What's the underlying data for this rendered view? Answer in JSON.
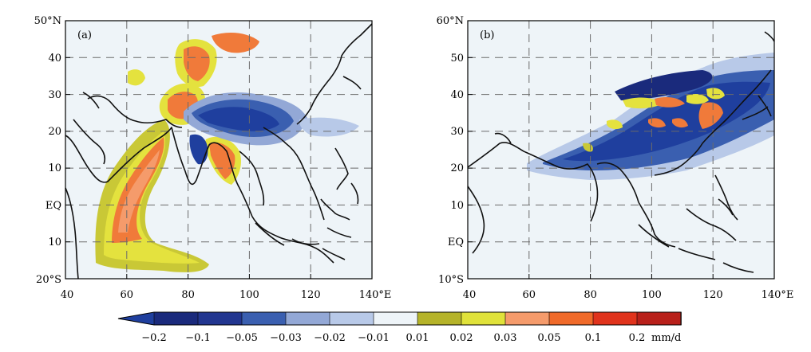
{
  "panel_a": {
    "label": "(a)",
    "y_ticks": [
      "50°N",
      "40",
      "30",
      "20",
      "10",
      "EQ",
      "10",
      "20°S"
    ],
    "x_ticks": [
      "40",
      "60",
      "80",
      "100",
      "120",
      "140°E"
    ]
  },
  "panel_b": {
    "label": "(b)",
    "y_ticks": [
      "60°N",
      "50",
      "40",
      "30",
      "20",
      "10",
      "EQ",
      "10°S"
    ],
    "x_ticks": [
      "40",
      "60",
      "80",
      "100",
      "120",
      "140°E"
    ]
  },
  "colorbar": {
    "labels": [
      "−0.2",
      "−0.1",
      "−0.05",
      "−0.03",
      "−0.02",
      "−0.01",
      "0.01",
      "0.02",
      "0.03",
      "0.05",
      "0.1",
      "0.2"
    ],
    "unit": "mm/d",
    "colors": [
      "#1f3f9e",
      "#1a2a7c",
      "#223690",
      "#3a5fb0",
      "#93a8d6",
      "#b8c9e8",
      "#eef4f8",
      "#b5b329",
      "#e0e23a",
      "#f59b6b",
      "#f06a2a",
      "#e0331c",
      "#b8201a"
    ]
  }
}
